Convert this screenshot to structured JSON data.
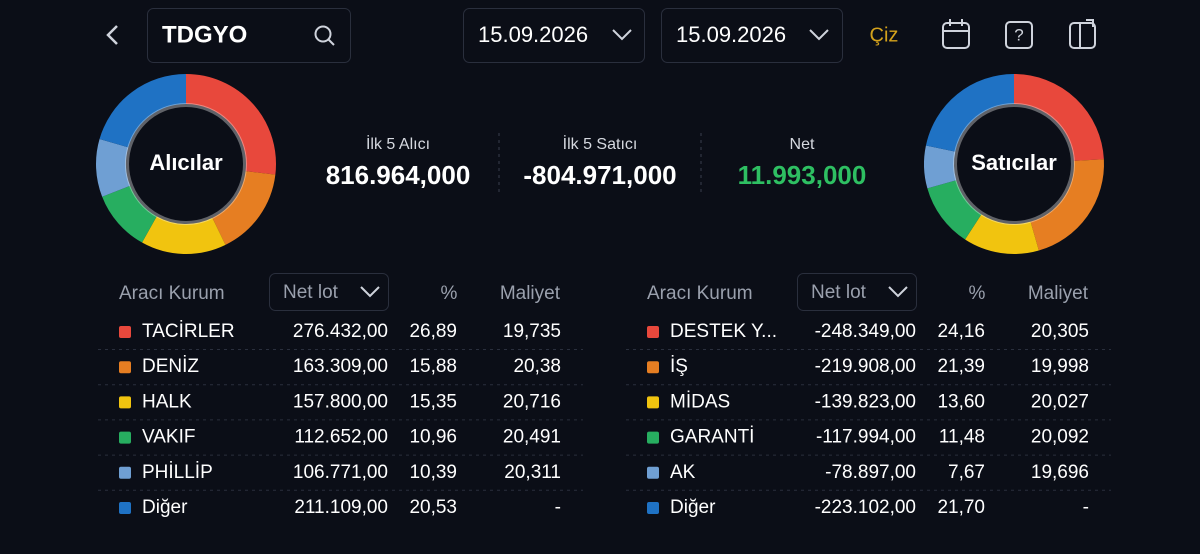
{
  "search": "TDGYO",
  "date_from": "15.09.2026",
  "date_to": "15.09.2026",
  "draw_button": "Çiz",
  "summary": [
    {
      "label": "İlk 5 Alıcı",
      "value": "816.964,000",
      "color": "#ffffff"
    },
    {
      "label": "İlk 5 Satıcı",
      "value": "-804.971,000",
      "color": "#ffffff"
    },
    {
      "label": "Net",
      "value": "11.993,000",
      "color": "#2ebf62"
    }
  ],
  "buyers": {
    "donut_label": "Alıcılar",
    "headers": [
      "Aracı Kurum",
      "Net lot",
      "%",
      "Maliyet"
    ],
    "rows": [
      {
        "color": "#e8483c",
        "name": "TACİRLER",
        "net_lot": "276.432,00",
        "pct": "26,89",
        "cost": "19,735"
      },
      {
        "color": "#e67e22",
        "name": "DENİZ",
        "net_lot": "163.309,00",
        "pct": "15,88",
        "cost": "20,38"
      },
      {
        "color": "#f1c40f",
        "name": "HALK",
        "net_lot": "157.800,00",
        "pct": "15,35",
        "cost": "20,716"
      },
      {
        "color": "#27ae60",
        "name": "VAKIF",
        "net_lot": "112.652,00",
        "pct": "10,96",
        "cost": "20,491"
      },
      {
        "color": "#6f9fd3",
        "name": "PHİLLİP",
        "net_lot": "106.771,00",
        "pct": "10,39",
        "cost": "20,311"
      },
      {
        "color": "#1f72c4",
        "name": "Diğer",
        "net_lot": "211.109,00",
        "pct": "20,53",
        "cost": "-"
      }
    ]
  },
  "sellers": {
    "donut_label": "Satıcılar",
    "headers": [
      "Aracı Kurum",
      "Net lot",
      "%",
      "Maliyet"
    ],
    "rows": [
      {
        "color": "#e8483c",
        "name": "DESTEK Y...",
        "net_lot": "-248.349,00",
        "pct": "24,16",
        "cost": "20,305"
      },
      {
        "color": "#e67e22",
        "name": "İŞ",
        "net_lot": "-219.908,00",
        "pct": "21,39",
        "cost": "19,998"
      },
      {
        "color": "#f1c40f",
        "name": "MİDAS",
        "net_lot": "-139.823,00",
        "pct": "13,60",
        "cost": "20,027"
      },
      {
        "color": "#27ae60",
        "name": "GARANTİ",
        "net_lot": "-117.994,00",
        "pct": "11,48",
        "cost": "20,092"
      },
      {
        "color": "#6f9fd3",
        "name": "AK",
        "net_lot": "-78.897,00",
        "pct": "7,67",
        "cost": "19,696"
      },
      {
        "color": "#1f72c4",
        "name": "Diğer",
        "net_lot": "-223.102,00",
        "pct": "21,70",
        "cost": "-"
      }
    ]
  }
}
